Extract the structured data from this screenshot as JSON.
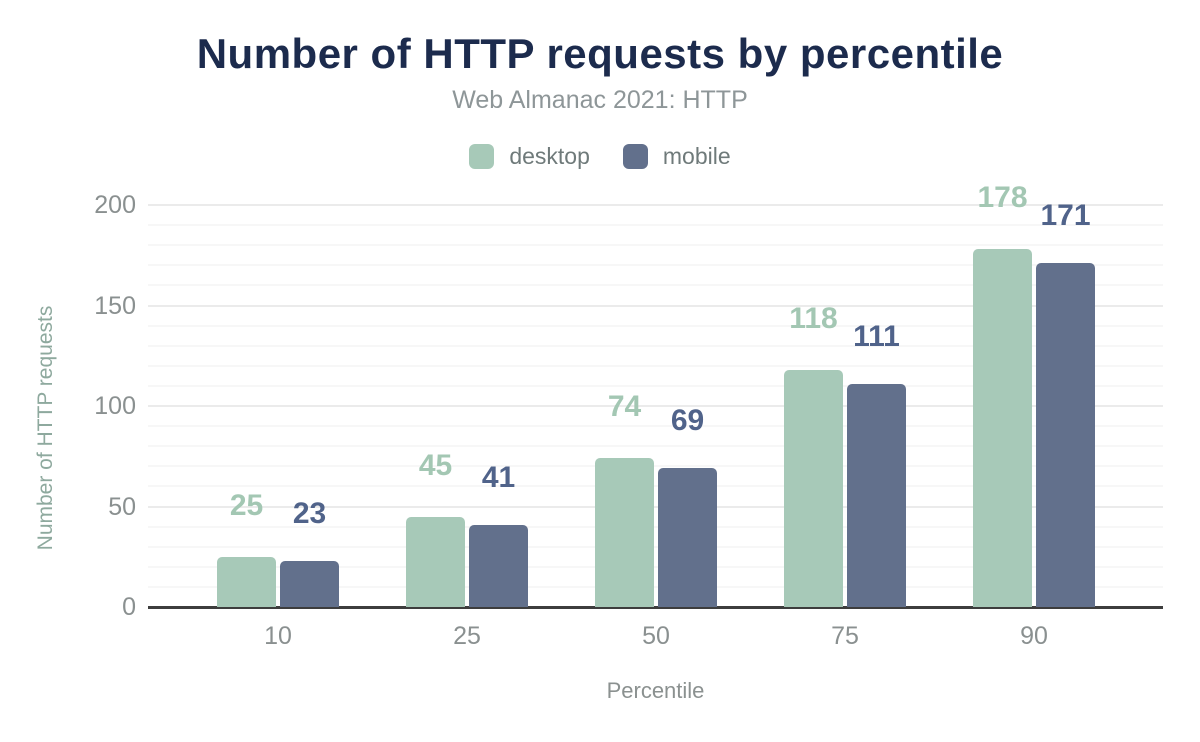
{
  "header": {
    "title": "Number of HTTP requests by percentile",
    "subtitle": "Web Almanac 2021: HTTP"
  },
  "legend": [
    {
      "label": "desktop",
      "color": "#a7c9b8"
    },
    {
      "label": "mobile",
      "color": "#62708c"
    }
  ],
  "chart_data": {
    "type": "bar",
    "title": "Number of HTTP requests by percentile",
    "subtitle": "Web Almanac 2021: HTTP",
    "categories": [
      "10",
      "25",
      "50",
      "75",
      "90"
    ],
    "series": [
      {
        "name": "desktop",
        "values": [
          25,
          45,
          74,
          118,
          178
        ],
        "color": "#a7c9b8",
        "label_color": "#a3c7b3"
      },
      {
        "name": "mobile",
        "values": [
          23,
          41,
          69,
          111,
          171
        ],
        "color": "#62708c",
        "label_color": "#50638a"
      }
    ],
    "xlabel": "Percentile",
    "ylabel": "Number of HTTP requests",
    "ylim": [
      0,
      200
    ],
    "y_major_ticks": [
      0,
      50,
      100,
      150,
      200
    ],
    "y_minor_step": 10,
    "grid": true,
    "legend_position": "top",
    "data_labels": true
  },
  "colors": {
    "background": "#ffffff",
    "title_text": "#1c2b4d",
    "subtitle_text": "#8e9698",
    "legend_text": "#6f7a7a",
    "axis_tick_text": "#8a9090",
    "y_axis_title_text": "#8ea99e",
    "x_axis_title_text": "#8b9190",
    "gridline_minor": "#f7f7f7",
    "gridline_major": "#ebebeb",
    "axis_baseline": "#3d3d3d"
  }
}
